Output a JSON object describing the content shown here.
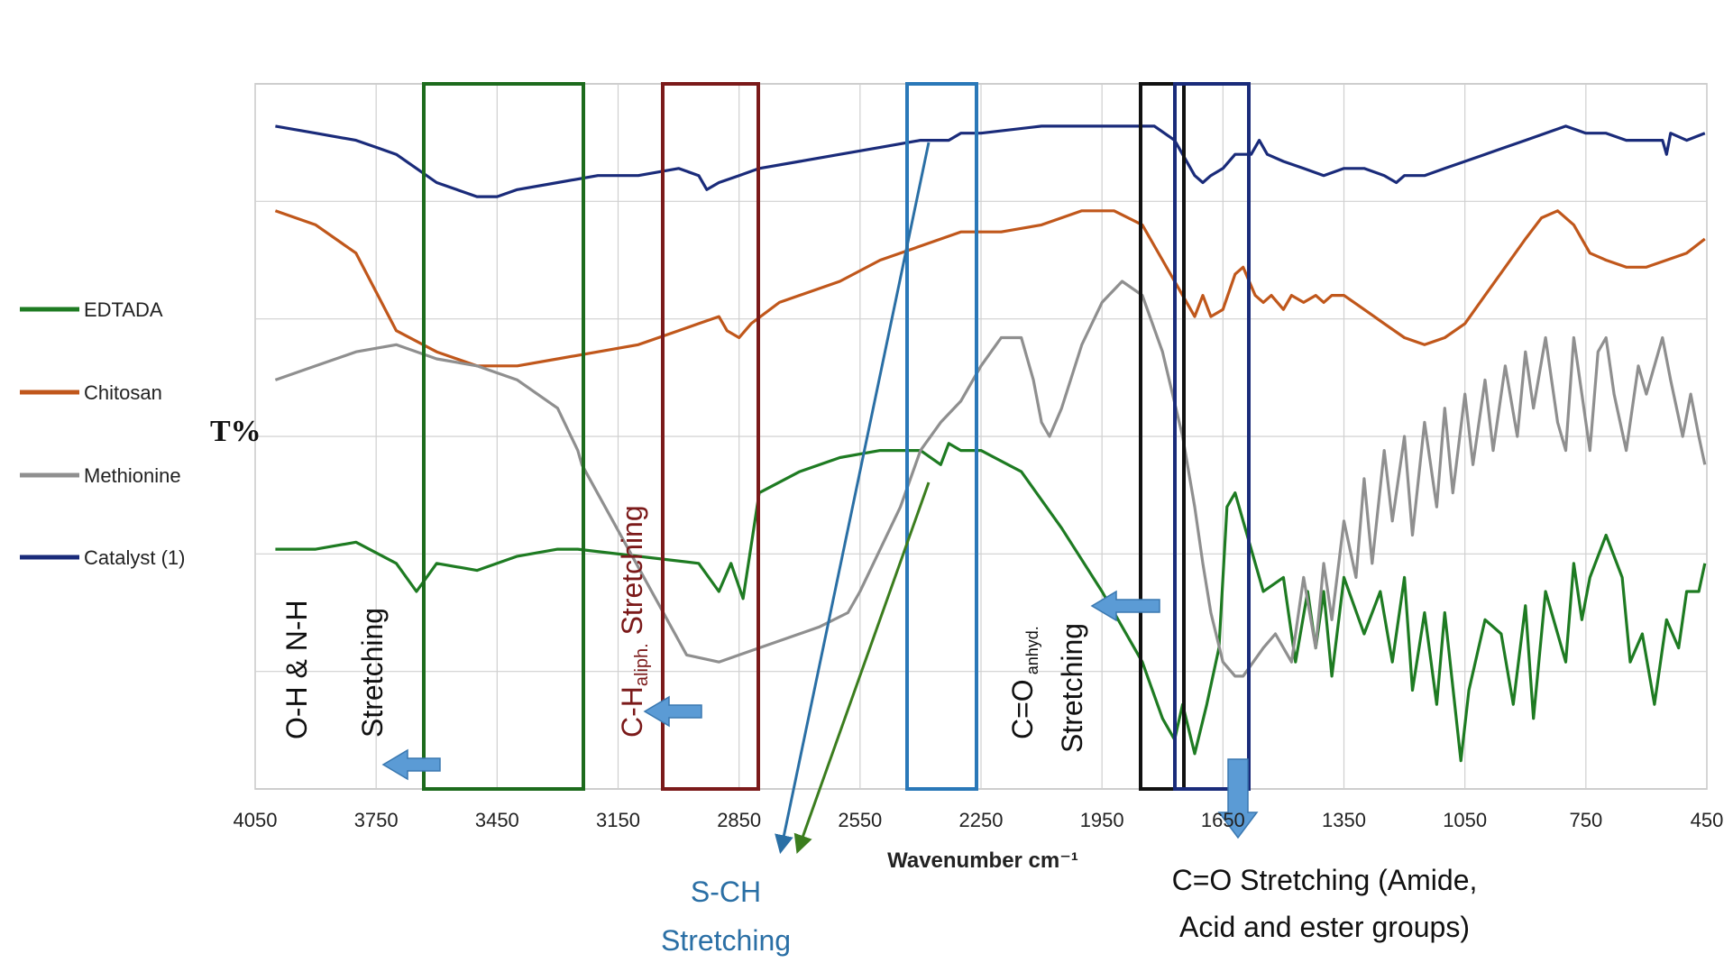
{
  "chart_data": {
    "type": "line",
    "xlabel": "Wavenumber cm⁻¹",
    "ylabel": "T%",
    "xlim": [
      4050,
      450
    ],
    "x_reversed": true,
    "x_ticks": [
      "4050",
      "3750",
      "3450",
      "3150",
      "2850",
      "2550",
      "2250",
      "1950",
      "1650",
      "1350",
      "1050",
      "750",
      "450"
    ],
    "grid": true,
    "legend_placement": "left",
    "series": [
      {
        "name": "EDTADA",
        "color": "#1e7b22",
        "points": [
          [
            4000,
            66
          ],
          [
            3900,
            66
          ],
          [
            3800,
            65
          ],
          [
            3700,
            68
          ],
          [
            3650,
            72
          ],
          [
            3600,
            68
          ],
          [
            3500,
            69
          ],
          [
            3400,
            67
          ],
          [
            3300,
            66
          ],
          [
            3250,
            66
          ],
          [
            2950,
            68
          ],
          [
            2900,
            72
          ],
          [
            2870,
            68
          ],
          [
            2840,
            73
          ],
          [
            2800,
            58
          ],
          [
            2700,
            55
          ],
          [
            2600,
            53
          ],
          [
            2500,
            52
          ],
          [
            2400,
            52
          ],
          [
            2350,
            54
          ],
          [
            2330,
            51
          ],
          [
            2300,
            52
          ],
          [
            2250,
            52
          ],
          [
            2150,
            55
          ],
          [
            2050,
            63
          ],
          [
            1950,
            72
          ],
          [
            1850,
            82
          ],
          [
            1800,
            90
          ],
          [
            1770,
            93
          ],
          [
            1750,
            88
          ],
          [
            1720,
            95
          ],
          [
            1690,
            88
          ],
          [
            1660,
            80
          ],
          [
            1640,
            60
          ],
          [
            1620,
            58
          ],
          [
            1600,
            62
          ],
          [
            1550,
            72
          ],
          [
            1500,
            70
          ],
          [
            1470,
            82
          ],
          [
            1440,
            72
          ],
          [
            1420,
            80
          ],
          [
            1400,
            72
          ],
          [
            1380,
            84
          ],
          [
            1350,
            70
          ],
          [
            1300,
            78
          ],
          [
            1260,
            72
          ],
          [
            1230,
            82
          ],
          [
            1200,
            70
          ],
          [
            1180,
            86
          ],
          [
            1150,
            75
          ],
          [
            1120,
            88
          ],
          [
            1100,
            75
          ],
          [
            1060,
            96
          ],
          [
            1040,
            86
          ],
          [
            1000,
            76
          ],
          [
            960,
            78
          ],
          [
            930,
            88
          ],
          [
            900,
            74
          ],
          [
            880,
            90
          ],
          [
            850,
            72
          ],
          [
            800,
            82
          ],
          [
            780,
            68
          ],
          [
            760,
            76
          ],
          [
            740,
            70
          ],
          [
            700,
            64
          ],
          [
            660,
            70
          ],
          [
            640,
            82
          ],
          [
            610,
            78
          ],
          [
            580,
            88
          ],
          [
            550,
            76
          ],
          [
            520,
            80
          ],
          [
            500,
            72
          ],
          [
            470,
            72
          ],
          [
            455,
            68
          ]
        ]
      },
      {
        "name": "Chitosan",
        "color": "#c0571b",
        "points": [
          [
            4000,
            18
          ],
          [
            3900,
            20
          ],
          [
            3800,
            24
          ],
          [
            3700,
            35
          ],
          [
            3600,
            38
          ],
          [
            3500,
            40
          ],
          [
            3400,
            40
          ],
          [
            3300,
            39
          ],
          [
            3200,
            38
          ],
          [
            3100,
            37
          ],
          [
            3000,
            35
          ],
          [
            2950,
            34
          ],
          [
            2900,
            33
          ],
          [
            2880,
            35
          ],
          [
            2850,
            36
          ],
          [
            2820,
            34
          ],
          [
            2750,
            31
          ],
          [
            2600,
            28
          ],
          [
            2500,
            25
          ],
          [
            2400,
            23
          ],
          [
            2300,
            21
          ],
          [
            2200,
            21
          ],
          [
            2100,
            20
          ],
          [
            2000,
            18
          ],
          [
            1920,
            18
          ],
          [
            1850,
            20
          ],
          [
            1800,
            25
          ],
          [
            1750,
            30
          ],
          [
            1720,
            33
          ],
          [
            1700,
            30
          ],
          [
            1680,
            33
          ],
          [
            1650,
            32
          ],
          [
            1620,
            27
          ],
          [
            1600,
            26
          ],
          [
            1570,
            30
          ],
          [
            1550,
            31
          ],
          [
            1530,
            30
          ],
          [
            1500,
            32
          ],
          [
            1480,
            30
          ],
          [
            1450,
            31
          ],
          [
            1420,
            30
          ],
          [
            1400,
            31
          ],
          [
            1380,
            30
          ],
          [
            1350,
            30
          ],
          [
            1300,
            32
          ],
          [
            1250,
            34
          ],
          [
            1200,
            36
          ],
          [
            1150,
            37
          ],
          [
            1100,
            36
          ],
          [
            1050,
            34
          ],
          [
            1000,
            30
          ],
          [
            950,
            26
          ],
          [
            900,
            22
          ],
          [
            860,
            19
          ],
          [
            820,
            18
          ],
          [
            780,
            20
          ],
          [
            740,
            24
          ],
          [
            700,
            25
          ],
          [
            650,
            26
          ],
          [
            600,
            26
          ],
          [
            550,
            25
          ],
          [
            500,
            24
          ],
          [
            455,
            22
          ]
        ]
      },
      {
        "name": "Methionine",
        "color": "#8f8f8f",
        "points": [
          [
            4000,
            42
          ],
          [
            3900,
            40
          ],
          [
            3800,
            38
          ],
          [
            3700,
            37
          ],
          [
            3600,
            39
          ],
          [
            3500,
            40
          ],
          [
            3400,
            42
          ],
          [
            3300,
            46
          ],
          [
            3250,
            52
          ],
          [
            3240,
            54
          ],
          [
            2980,
            81
          ],
          [
            2900,
            82
          ],
          [
            2850,
            81
          ],
          [
            2750,
            79
          ],
          [
            2650,
            77
          ],
          [
            2580,
            75
          ],
          [
            2550,
            72
          ],
          [
            2450,
            60
          ],
          [
            2400,
            52
          ],
          [
            2350,
            48
          ],
          [
            2300,
            45
          ],
          [
            2250,
            40
          ],
          [
            2200,
            36
          ],
          [
            2150,
            36
          ],
          [
            2120,
            42
          ],
          [
            2100,
            48
          ],
          [
            2080,
            50
          ],
          [
            2050,
            46
          ],
          [
            2000,
            37
          ],
          [
            1950,
            31
          ],
          [
            1900,
            28
          ],
          [
            1850,
            30
          ],
          [
            1800,
            38
          ],
          [
            1750,
            50
          ],
          [
            1720,
            60
          ],
          [
            1700,
            68
          ],
          [
            1680,
            75
          ],
          [
            1650,
            82
          ],
          [
            1620,
            84
          ],
          [
            1600,
            84
          ],
          [
            1550,
            80
          ],
          [
            1520,
            78
          ],
          [
            1480,
            82
          ],
          [
            1450,
            70
          ],
          [
            1420,
            80
          ],
          [
            1400,
            68
          ],
          [
            1380,
            76
          ],
          [
            1350,
            62
          ],
          [
            1320,
            70
          ],
          [
            1300,
            56
          ],
          [
            1280,
            68
          ],
          [
            1250,
            52
          ],
          [
            1230,
            62
          ],
          [
            1200,
            50
          ],
          [
            1180,
            64
          ],
          [
            1150,
            48
          ],
          [
            1120,
            60
          ],
          [
            1100,
            46
          ],
          [
            1080,
            58
          ],
          [
            1050,
            44
          ],
          [
            1030,
            54
          ],
          [
            1000,
            42
          ],
          [
            980,
            52
          ],
          [
            950,
            40
          ],
          [
            920,
            50
          ],
          [
            900,
            38
          ],
          [
            880,
            46
          ],
          [
            850,
            36
          ],
          [
            820,
            48
          ],
          [
            800,
            52
          ],
          [
            780,
            36
          ],
          [
            760,
            44
          ],
          [
            740,
            52
          ],
          [
            720,
            38
          ],
          [
            700,
            36
          ],
          [
            680,
            44
          ],
          [
            650,
            52
          ],
          [
            620,
            40
          ],
          [
            600,
            44
          ],
          [
            560,
            36
          ],
          [
            540,
            42
          ],
          [
            510,
            50
          ],
          [
            490,
            44
          ],
          [
            470,
            50
          ],
          [
            455,
            54
          ]
        ]
      },
      {
        "name": "Catalyst (1)",
        "color": "#1a2b7a",
        "points": [
          [
            4000,
            6
          ],
          [
            3900,
            7
          ],
          [
            3800,
            8
          ],
          [
            3750,
            9
          ],
          [
            3700,
            10
          ],
          [
            3650,
            12
          ],
          [
            3600,
            14
          ],
          [
            3550,
            15
          ],
          [
            3500,
            16
          ],
          [
            3450,
            16
          ],
          [
            3400,
            15
          ],
          [
            3300,
            14
          ],
          [
            3200,
            13
          ],
          [
            3100,
            13
          ],
          [
            3000,
            12
          ],
          [
            2950,
            13
          ],
          [
            2930,
            15
          ],
          [
            2900,
            14
          ],
          [
            2850,
            13
          ],
          [
            2800,
            12
          ],
          [
            2700,
            11
          ],
          [
            2600,
            10
          ],
          [
            2500,
            9
          ],
          [
            2400,
            8
          ],
          [
            2330,
            8
          ],
          [
            2300,
            7
          ],
          [
            2250,
            7
          ],
          [
            2100,
            6
          ],
          [
            1950,
            6
          ],
          [
            1820,
            6
          ],
          [
            1770,
            8
          ],
          [
            1750,
            10
          ],
          [
            1720,
            13
          ],
          [
            1700,
            14
          ],
          [
            1680,
            13
          ],
          [
            1650,
            12
          ],
          [
            1620,
            10
          ],
          [
            1580,
            10
          ],
          [
            1560,
            8
          ],
          [
            1540,
            10
          ],
          [
            1500,
            11
          ],
          [
            1450,
            12
          ],
          [
            1400,
            13
          ],
          [
            1350,
            12
          ],
          [
            1300,
            12
          ],
          [
            1250,
            13
          ],
          [
            1220,
            14
          ],
          [
            1200,
            13
          ],
          [
            1150,
            13
          ],
          [
            1100,
            12
          ],
          [
            1050,
            11
          ],
          [
            1000,
            10
          ],
          [
            950,
            9
          ],
          [
            900,
            8
          ],
          [
            850,
            7
          ],
          [
            800,
            6
          ],
          [
            750,
            7
          ],
          [
            700,
            7
          ],
          [
            650,
            8
          ],
          [
            600,
            8
          ],
          [
            560,
            8
          ],
          [
            550,
            10
          ],
          [
            540,
            7
          ],
          [
            500,
            8
          ],
          [
            455,
            7
          ]
        ]
      }
    ],
    "annotations": {
      "oh_nh": {
        "line1": "O-H & N-H",
        "line2": "Stretching"
      },
      "ch_aliph": {
        "main": "C-H",
        "sub": "aliph.",
        "suffix": " Stretching"
      },
      "sch": {
        "line1": "S-CH",
        "line2": "Stretching"
      },
      "co_anhyd": {
        "main": "C=O",
        "sub": " anhyd.",
        "line2": "Stretching"
      },
      "co_amide": {
        "line1": "C=O Stretching (Amide,",
        "line2": "Acid and ester groups)"
      }
    }
  }
}
